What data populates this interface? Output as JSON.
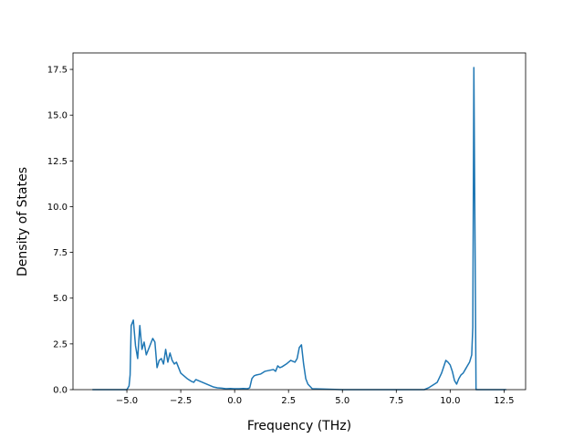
{
  "chart_data": {
    "type": "line",
    "title": "",
    "xlabel": "Frequency (THz)",
    "ylabel": "Density of States",
    "xlim": [
      -7.5,
      13.5
    ],
    "ylim": [
      0,
      18.4
    ],
    "grid": false,
    "xticks": [
      -5.0,
      -2.5,
      0.0,
      2.5,
      5.0,
      7.5,
      10.0,
      12.5
    ],
    "xtick_labels": [
      "−5.0",
      "−2.5",
      "0.0",
      "2.5",
      "5.0",
      "7.5",
      "10.0",
      "12.5"
    ],
    "yticks": [
      0.0,
      2.5,
      5.0,
      7.5,
      10.0,
      12.5,
      15.0,
      17.5
    ],
    "ytick_labels": [
      "0.0",
      "2.5",
      "5.0",
      "7.5",
      "10.0",
      "12.5",
      "15.0",
      "17.5"
    ],
    "series": [
      {
        "color": "#1f77b4",
        "x": [
          -6.6,
          -5.5,
          -5.0,
          -4.9,
          -4.85,
          -4.8,
          -4.7,
          -4.6,
          -4.5,
          -4.4,
          -4.3,
          -4.2,
          -4.1,
          -4.0,
          -3.9,
          -3.8,
          -3.7,
          -3.6,
          -3.5,
          -3.4,
          -3.3,
          -3.2,
          -3.1,
          -3.0,
          -2.9,
          -2.8,
          -2.7,
          -2.6,
          -2.5,
          -2.4,
          -2.2,
          -2.0,
          -1.9,
          -1.8,
          -1.6,
          -1.4,
          -1.2,
          -1.0,
          -0.8,
          -0.6,
          -0.4,
          -0.2,
          0.0,
          0.2,
          0.4,
          0.6,
          0.7,
          0.8,
          0.9,
          1.0,
          1.2,
          1.4,
          1.6,
          1.8,
          1.9,
          2.0,
          2.1,
          2.2,
          2.4,
          2.6,
          2.8,
          2.9,
          3.0,
          3.1,
          3.2,
          3.3,
          3.4,
          3.6,
          5.0,
          7.5,
          8.8,
          9.0,
          9.2,
          9.4,
          9.6,
          9.8,
          9.9,
          10.0,
          10.1,
          10.2,
          10.3,
          10.4,
          10.5,
          10.6,
          10.7,
          10.8,
          10.9,
          11.0,
          11.05,
          11.1,
          11.2,
          12.0,
          12.6
        ],
        "y": [
          0,
          0,
          0,
          0.2,
          0.8,
          3.5,
          3.8,
          2.4,
          1.7,
          3.5,
          2.2,
          2.6,
          1.9,
          2.2,
          2.5,
          2.8,
          2.6,
          1.2,
          1.6,
          1.7,
          1.4,
          2.2,
          1.5,
          2.0,
          1.6,
          1.4,
          1.5,
          1.2,
          0.9,
          0.8,
          0.6,
          0.45,
          0.4,
          0.55,
          0.45,
          0.35,
          0.25,
          0.15,
          0.1,
          0.08,
          0.05,
          0.06,
          0.05,
          0.05,
          0.06,
          0.05,
          0.1,
          0.6,
          0.75,
          0.8,
          0.85,
          1.0,
          1.05,
          1.1,
          1.0,
          1.3,
          1.2,
          1.25,
          1.4,
          1.6,
          1.5,
          1.7,
          2.3,
          2.45,
          1.4,
          0.6,
          0.3,
          0.05,
          0,
          0,
          0,
          0.1,
          0.25,
          0.4,
          0.9,
          1.6,
          1.5,
          1.35,
          1.0,
          0.5,
          0.3,
          0.6,
          0.8,
          0.9,
          1.1,
          1.3,
          1.5,
          1.9,
          3.4,
          17.6,
          0.0,
          0,
          0
        ]
      }
    ]
  }
}
